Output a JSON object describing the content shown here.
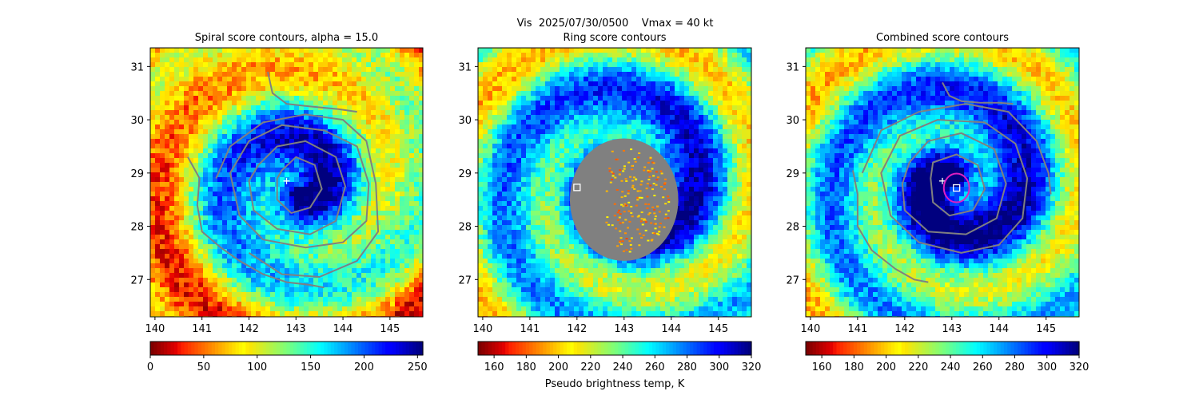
{
  "figure": {
    "suptitle": "Vis  2025/07/30/0500    Vmax = 40 kt",
    "colors": {
      "contour": "#808080",
      "marker": "#ffffff",
      "ring": "#e020c0"
    }
  },
  "chart_data": [
    {
      "type": "heatmap",
      "title": "Spiral score contours, alpha = 15.0",
      "xlim": [
        139.9,
        145.7
      ],
      "ylim": [
        26.3,
        31.35
      ],
      "xticks": [
        140,
        141,
        142,
        143,
        144,
        145
      ],
      "yticks": [
        27,
        28,
        29,
        30,
        31
      ],
      "colorbar": {
        "colormap": "jet_r",
        "range": [
          0,
          255
        ],
        "ticks": [
          0,
          50,
          100,
          150,
          200,
          250
        ],
        "label": ""
      },
      "markers": [
        {
          "type": "plus",
          "x": 142.8,
          "y": 28.85
        }
      ],
      "contours": [
        [
          [
            142.7,
            29.05
          ],
          [
            143.0,
            29.3
          ],
          [
            143.4,
            29.15
          ],
          [
            143.55,
            28.7
          ],
          [
            143.3,
            28.35
          ],
          [
            142.9,
            28.25
          ],
          [
            142.6,
            28.5
          ],
          [
            142.6,
            28.9
          ]
        ],
        [
          [
            142.2,
            29.15
          ],
          [
            142.6,
            29.5
          ],
          [
            143.2,
            29.6
          ],
          [
            143.85,
            29.3
          ],
          [
            144.05,
            28.75
          ],
          [
            143.85,
            28.1
          ],
          [
            143.3,
            27.85
          ],
          [
            142.6,
            27.95
          ],
          [
            142.1,
            28.3
          ],
          [
            142.0,
            28.85
          ]
        ],
        [
          [
            141.6,
            29.0
          ],
          [
            142.0,
            29.6
          ],
          [
            142.7,
            29.9
          ],
          [
            143.6,
            29.8
          ],
          [
            144.3,
            29.5
          ],
          [
            144.55,
            28.8
          ],
          [
            144.5,
            28.1
          ],
          [
            144.0,
            27.7
          ],
          [
            143.2,
            27.6
          ],
          [
            142.3,
            27.75
          ],
          [
            141.8,
            28.2
          ]
        ],
        [
          [
            141.3,
            28.9
          ],
          [
            141.6,
            29.5
          ],
          [
            142.3,
            29.95
          ],
          [
            143.2,
            30.1
          ],
          [
            144.0,
            30.0
          ],
          [
            144.5,
            29.6
          ],
          [
            144.7,
            28.8
          ],
          [
            144.75,
            27.9
          ],
          [
            144.3,
            27.35
          ],
          [
            143.5,
            27.05
          ],
          [
            142.7,
            27.1
          ],
          [
            142.0,
            27.5
          ]
        ],
        [
          [
            140.7,
            29.3
          ],
          [
            140.95,
            28.9
          ],
          [
            140.9,
            28.4
          ],
          [
            141.0,
            27.9
          ],
          [
            141.4,
            27.6
          ],
          [
            141.8,
            27.35
          ],
          [
            142.3,
            27.1
          ],
          [
            142.8,
            26.95
          ],
          [
            143.3,
            26.9
          ],
          [
            143.6,
            26.85
          ]
        ],
        [
          [
            142.4,
            30.9
          ],
          [
            142.5,
            30.5
          ],
          [
            142.8,
            30.3
          ],
          [
            143.3,
            30.25
          ],
          [
            143.9,
            30.2
          ],
          [
            144.3,
            30.15
          ]
        ]
      ]
    },
    {
      "type": "heatmap",
      "title": "Ring score contours",
      "xlim": [
        139.9,
        145.7
      ],
      "ylim": [
        26.3,
        31.35
      ],
      "xticks": [
        140,
        141,
        142,
        143,
        144,
        145
      ],
      "yticks": [
        27,
        28,
        29,
        30,
        31
      ],
      "colorbar": {
        "colormap": "jet_r",
        "range": [
          150,
          320
        ],
        "ticks": [
          160,
          180,
          200,
          220,
          240,
          260,
          280,
          300,
          320
        ],
        "label": "Pseudo brightness temp, K"
      },
      "masked_disk": {
        "x": 143.0,
        "y": 28.5,
        "radius": 1.15
      },
      "markers": [
        {
          "type": "square",
          "x": 142.0,
          "y": 28.73
        }
      ],
      "contours": []
    },
    {
      "type": "heatmap",
      "title": "Combined score contours",
      "xlim": [
        139.9,
        145.7
      ],
      "ylim": [
        26.3,
        31.35
      ],
      "xticks": [
        140,
        141,
        142,
        143,
        144,
        145
      ],
      "yticks": [
        27,
        28,
        29,
        30,
        31
      ],
      "colorbar": {
        "colormap": "jet_r",
        "range": [
          150,
          320
        ],
        "ticks": [
          160,
          180,
          200,
          220,
          240,
          260,
          280,
          300,
          320
        ],
        "label": ""
      },
      "markers": [
        {
          "type": "plus",
          "x": 142.8,
          "y": 28.85
        },
        {
          "type": "square",
          "x": 143.1,
          "y": 28.72
        },
        {
          "type": "circle",
          "x": 143.1,
          "y": 28.72,
          "radius": 0.27
        }
      ],
      "contours": [
        [
          [
            142.6,
            29.2
          ],
          [
            143.1,
            29.35
          ],
          [
            143.55,
            29.15
          ],
          [
            143.7,
            28.7
          ],
          [
            143.45,
            28.3
          ],
          [
            142.95,
            28.2
          ],
          [
            142.6,
            28.45
          ],
          [
            142.55,
            28.9
          ]
        ],
        [
          [
            142.1,
            29.2
          ],
          [
            142.5,
            29.6
          ],
          [
            143.2,
            29.75
          ],
          [
            143.9,
            29.45
          ],
          [
            144.15,
            28.8
          ],
          [
            143.95,
            28.15
          ],
          [
            143.3,
            27.85
          ],
          [
            142.5,
            27.9
          ],
          [
            142.0,
            28.3
          ],
          [
            141.95,
            28.8
          ]
        ],
        [
          [
            141.5,
            29.0
          ],
          [
            141.9,
            29.7
          ],
          [
            142.7,
            30.0
          ],
          [
            143.7,
            29.95
          ],
          [
            144.35,
            29.55
          ],
          [
            144.6,
            28.9
          ],
          [
            144.5,
            28.15
          ],
          [
            144.0,
            27.65
          ],
          [
            143.2,
            27.5
          ],
          [
            142.3,
            27.7
          ],
          [
            141.7,
            28.2
          ]
        ],
        [
          [
            141.1,
            29.0
          ],
          [
            141.5,
            29.8
          ],
          [
            142.3,
            30.15
          ],
          [
            143.3,
            30.3
          ],
          [
            144.2,
            30.15
          ],
          [
            144.8,
            29.6
          ],
          [
            145.05,
            29.0
          ],
          [
            145.1,
            28.6
          ]
        ],
        [
          [
            140.9,
            29.05
          ],
          [
            141.0,
            28.6
          ],
          [
            141.0,
            28.0
          ],
          [
            141.3,
            27.55
          ],
          [
            141.8,
            27.2
          ],
          [
            142.2,
            27.0
          ],
          [
            142.5,
            26.95
          ]
        ],
        [
          [
            142.8,
            30.7
          ],
          [
            142.95,
            30.45
          ],
          [
            143.2,
            30.35
          ],
          [
            143.6,
            30.32
          ],
          [
            144.0,
            30.32
          ],
          [
            144.3,
            30.3
          ]
        ]
      ]
    }
  ]
}
